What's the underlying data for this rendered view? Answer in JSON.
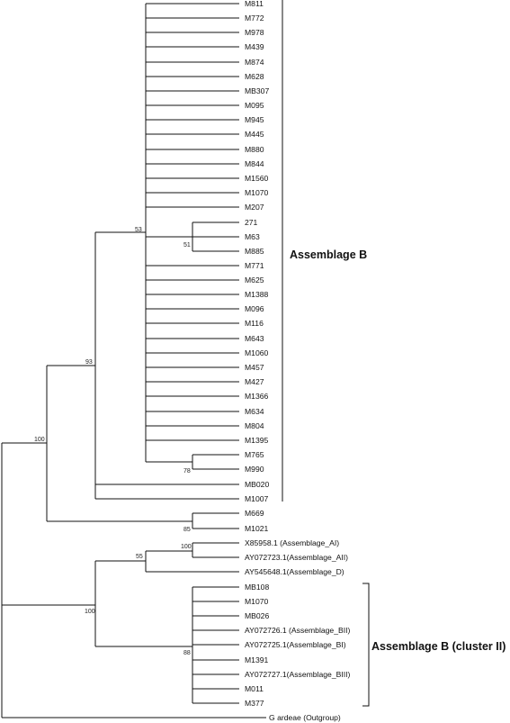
{
  "tree": {
    "taxa": {
      "M811": "M811",
      "M772": "M772",
      "M978": "M978",
      "M439": "M439",
      "M874": "M874",
      "M628": "M628",
      "MB307": "MB307",
      "M095": "M095",
      "M945": "M945",
      "M445": "M445",
      "M880": "M880",
      "M844": "M844",
      "M1560": "M1560",
      "M1070a": "M1070",
      "M207": "M207",
      "t271": "271",
      "M63": "M63",
      "M885": "M885",
      "M771": "M771",
      "M625": "M625",
      "M1388": "M1388",
      "M096": "M096",
      "M116": "M116",
      "M643": "M643",
      "M1060": "M1060",
      "M457": "M457",
      "M427": "M427",
      "M1366": "M1366",
      "M634": "M634",
      "M804": "M804",
      "M1395": "M1395",
      "M765": "M765",
      "M990": "M990",
      "MB020": "MB020",
      "M1007": "M1007",
      "M669": "M669",
      "M1021": "M1021",
      "X85958": "X85958.1 (Assemblage_AI)",
      "AY072723": "AY072723.1(Assemblage_AII)",
      "AY545648": "AY545648.1(Assemblage_D)",
      "MB108": "MB108",
      "M1070b": "M1070",
      "MB026": "MB026",
      "AY072726": "AY072726.1 (Assemblage_BII)",
      "AY072725": "AY072725.1(Assemblage_BI)",
      "M1391": "M1391",
      "AY072727": "AY072727.1(Assemblage_BIII)",
      "M011": "M011",
      "M377": "M377",
      "ardeae": "G ardeae (Outgroup)"
    },
    "support": {
      "s100_root": "100",
      "s93": "93",
      "s53": "53",
      "s51": "51",
      "s78": "78",
      "s85": "85",
      "s100_ai": "100",
      "s55": "55",
      "s100_lower": "100",
      "s88": "88"
    },
    "clades": {
      "assemblage_b": "Assemblage B",
      "assemblage_b_cluster": "Assemblage B (cluster II)"
    }
  }
}
